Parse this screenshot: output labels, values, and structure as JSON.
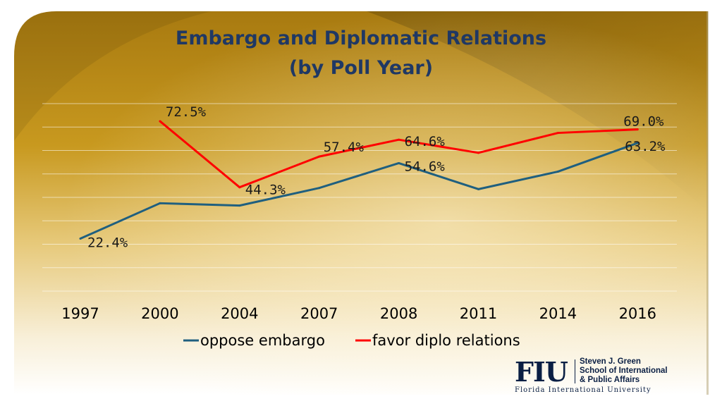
{
  "slide": {
    "title_line1": "Embargo and Diplomatic Relations",
    "title_line2": "(by Poll Year)"
  },
  "logo": {
    "mark": "FIU",
    "school_line1": "Steven J. Green",
    "school_line2": "School of International",
    "school_line3": "& Public Affairs",
    "university": "Florida International University"
  },
  "chart_data": {
    "type": "line",
    "categories": [
      "1997",
      "2000",
      "2004",
      "2007",
      "2008",
      "2011",
      "2014",
      "2016"
    ],
    "ylim": [
      0,
      80
    ],
    "grid": true,
    "legend_position": "bottom",
    "series": [
      {
        "name": "oppose embargo",
        "color": "#1f5f7f",
        "values": [
          22.4,
          37.5,
          36.5,
          44.0,
          54.6,
          43.5,
          51.0,
          63.2
        ],
        "labels": [
          "22.4%",
          null,
          null,
          null,
          "54.6%",
          null,
          null,
          "63.2%"
        ]
      },
      {
        "name": "favor diplo relations",
        "color": "#ff0000",
        "values": [
          null,
          72.5,
          44.3,
          57.4,
          64.6,
          59.0,
          67.5,
          69.0
        ],
        "labels": [
          null,
          "72.5%",
          "44.3%",
          "57.4%",
          "64.6%",
          null,
          null,
          "69.0%"
        ]
      }
    ]
  }
}
